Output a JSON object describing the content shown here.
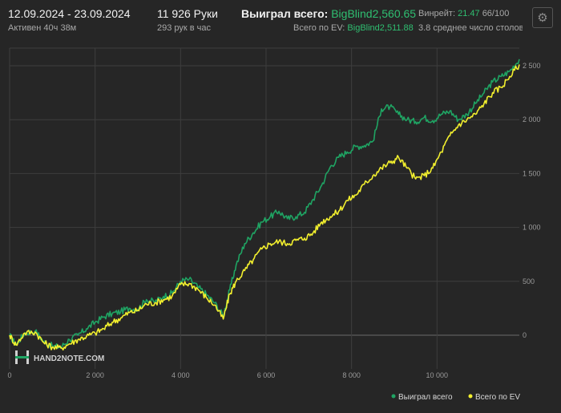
{
  "header": {
    "date_range": "12.09.2024 - 23.09.2024",
    "active_time": "Активен 40ч 38м",
    "hands": "11 926 Руки",
    "hands_per_hour": "293 рук в час",
    "won_label": "Выиграл всего:",
    "won_value": "BigBlind2,560.65",
    "ev_label": "Всего по EV:",
    "ev_value": "BigBlind2,511.88",
    "winrate_label": "Винрейт:",
    "winrate_value": "21.47",
    "winrate_unit": "66/100",
    "avg_tables": "3.8 среднее число столов"
  },
  "watermark": {
    "text": "HAND2NOTE.COM",
    "logo_icon": "h2n-logo-icon"
  },
  "colors": {
    "background": "#262626",
    "grid": "#3e3e3e",
    "won": "#1fa463",
    "ev": "#f2ef2e",
    "accent_text": "#2fbf71"
  },
  "chart_data": {
    "type": "line",
    "xlabel": "",
    "ylabel": "",
    "xlim": [
      0,
      11926
    ],
    "ylim": [
      -300,
      2750
    ],
    "x_ticks": [
      0,
      2000,
      4000,
      6000,
      8000,
      10000
    ],
    "x_tick_labels": [
      "0",
      "2 000",
      "4 000",
      "6 000",
      "8 000",
      "10 000"
    ],
    "y_ticks": [
      0,
      500,
      1000,
      1500,
      2000,
      2500
    ],
    "y_tick_labels": [
      "0",
      "500",
      "1 000",
      "1 500",
      "2 000",
      "2 500"
    ],
    "grid": true,
    "legend_position": "bottom-right",
    "series": [
      {
        "name": "Выиграл всего",
        "color": "#1fa463",
        "points": [
          [
            0,
            0
          ],
          [
            150,
            -90
          ],
          [
            350,
            20
          ],
          [
            600,
            40
          ],
          [
            800,
            -60
          ],
          [
            1000,
            -100
          ],
          [
            1200,
            -110
          ],
          [
            1400,
            -40
          ],
          [
            1600,
            0
          ],
          [
            1800,
            60
          ],
          [
            2000,
            120
          ],
          [
            2200,
            170
          ],
          [
            2400,
            200
          ],
          [
            2600,
            220
          ],
          [
            2800,
            250
          ],
          [
            3000,
            240
          ],
          [
            3200,
            330
          ],
          [
            3400,
            310
          ],
          [
            3600,
            360
          ],
          [
            3800,
            390
          ],
          [
            4000,
            500
          ],
          [
            4200,
            520
          ],
          [
            4400,
            450
          ],
          [
            4600,
            380
          ],
          [
            4800,
            300
          ],
          [
            5000,
            180
          ],
          [
            5150,
            420
          ],
          [
            5300,
            650
          ],
          [
            5500,
            850
          ],
          [
            5700,
            950
          ],
          [
            5900,
            1050
          ],
          [
            6100,
            1100
          ],
          [
            6300,
            1150
          ],
          [
            6500,
            1080
          ],
          [
            6700,
            1100
          ],
          [
            6900,
            1140
          ],
          [
            7100,
            1260
          ],
          [
            7300,
            1390
          ],
          [
            7500,
            1560
          ],
          [
            7700,
            1650
          ],
          [
            7900,
            1700
          ],
          [
            8100,
            1750
          ],
          [
            8300,
            1760
          ],
          [
            8500,
            1800
          ],
          [
            8700,
            2100
          ],
          [
            8900,
            2120
          ],
          [
            9100,
            2050
          ],
          [
            9300,
            2000
          ],
          [
            9500,
            1980
          ],
          [
            9700,
            2020
          ],
          [
            9900,
            1990
          ],
          [
            10100,
            2050
          ],
          [
            10300,
            2080
          ],
          [
            10500,
            2000
          ],
          [
            10700,
            2050
          ],
          [
            10900,
            2150
          ],
          [
            11100,
            2250
          ],
          [
            11300,
            2350
          ],
          [
            11500,
            2400
          ],
          [
            11700,
            2450
          ],
          [
            11926,
            2560.65
          ]
        ]
      },
      {
        "name": "Всего по EV",
        "color": "#f2ef2e",
        "points": [
          [
            0,
            0
          ],
          [
            150,
            -90
          ],
          [
            350,
            20
          ],
          [
            600,
            30
          ],
          [
            800,
            -70
          ],
          [
            1000,
            -110
          ],
          [
            1200,
            -120
          ],
          [
            1400,
            -80
          ],
          [
            1600,
            -40
          ],
          [
            1800,
            -10
          ],
          [
            2000,
            20
          ],
          [
            2200,
            60
          ],
          [
            2400,
            120
          ],
          [
            2600,
            160
          ],
          [
            2800,
            210
          ],
          [
            3000,
            230
          ],
          [
            3200,
            290
          ],
          [
            3400,
            300
          ],
          [
            3600,
            330
          ],
          [
            3800,
            360
          ],
          [
            4000,
            470
          ],
          [
            4200,
            480
          ],
          [
            4400,
            430
          ],
          [
            4600,
            350
          ],
          [
            4800,
            280
          ],
          [
            5000,
            150
          ],
          [
            5150,
            380
          ],
          [
            5300,
            500
          ],
          [
            5500,
            600
          ],
          [
            5700,
            700
          ],
          [
            5900,
            800
          ],
          [
            6100,
            850
          ],
          [
            6300,
            870
          ],
          [
            6500,
            850
          ],
          [
            6700,
            880
          ],
          [
            6900,
            900
          ],
          [
            7100,
            950
          ],
          [
            7300,
            1050
          ],
          [
            7500,
            1100
          ],
          [
            7700,
            1150
          ],
          [
            7900,
            1250
          ],
          [
            8100,
            1300
          ],
          [
            8300,
            1400
          ],
          [
            8500,
            1480
          ],
          [
            8700,
            1550
          ],
          [
            8900,
            1600
          ],
          [
            9100,
            1650
          ],
          [
            9300,
            1550
          ],
          [
            9500,
            1450
          ],
          [
            9700,
            1480
          ],
          [
            9900,
            1550
          ],
          [
            10100,
            1700
          ],
          [
            10300,
            1850
          ],
          [
            10500,
            1950
          ],
          [
            10700,
            2000
          ],
          [
            10900,
            2050
          ],
          [
            11100,
            2150
          ],
          [
            11300,
            2250
          ],
          [
            11500,
            2300
          ],
          [
            11700,
            2400
          ],
          [
            11926,
            2511.88
          ]
        ]
      }
    ]
  }
}
